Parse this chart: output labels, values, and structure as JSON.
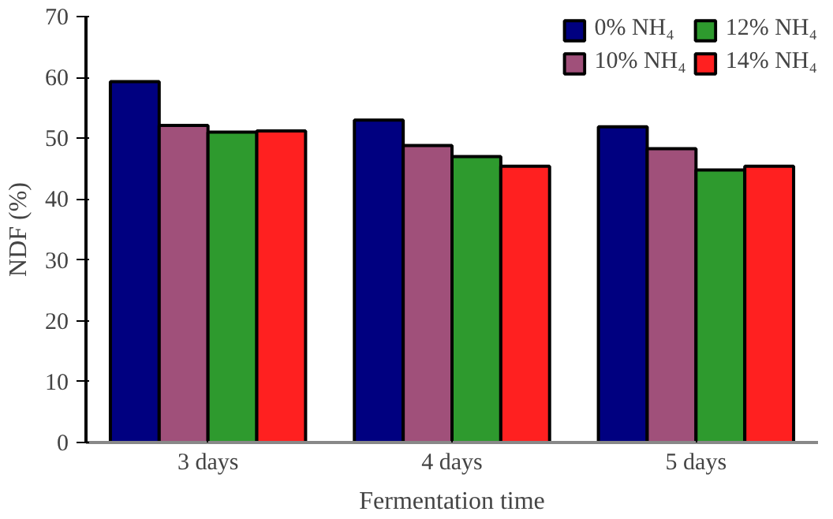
{
  "chart_data": {
    "type": "bar",
    "xlabel": "Fermentation time",
    "ylabel": "NDF (%)",
    "categories": [
      "3 days",
      "4 days",
      "5 days"
    ],
    "series": [
      {
        "name": "0% NH₄",
        "color": "#000080",
        "values": [
          59.3,
          53.0,
          51.9
        ]
      },
      {
        "name": "10% NH₄",
        "color": "#a0507a",
        "values": [
          52.1,
          48.8,
          48.3
        ]
      },
      {
        "name": "12% NH₄",
        "color": "#2e9a2e",
        "values": [
          51.0,
          47.0,
          44.8
        ]
      },
      {
        "name": "14% NH₄",
        "color": "#ff2020",
        "values": [
          51.2,
          45.4,
          45.4
        ]
      }
    ],
    "ylim": [
      0,
      70
    ],
    "yticks": [
      0,
      10,
      20,
      30,
      40,
      50,
      60,
      70
    ],
    "grid": false,
    "legend": "top right"
  }
}
